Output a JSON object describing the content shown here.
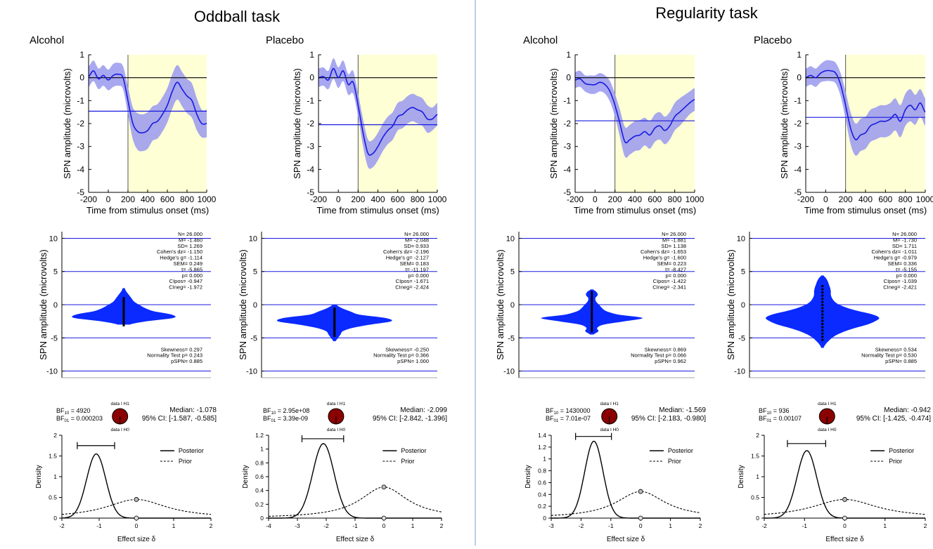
{
  "colors": {
    "erp_line": "#1a1ae0",
    "erp_band": "#9999ee",
    "window": "#ffffd6",
    "violin": "#0a2aff",
    "divider": "#7a9cc8",
    "bf_circle": "#8b0000"
  },
  "common": {
    "erp_xlabel": "Time from stimulus onset (ms)",
    "erp_ylabel": "SPN amplitude (microvolts)",
    "violin_ylabel": "SPN amplitude (microvolts)",
    "density_xlabel": "Effect size δ",
    "density_ylabel": "Density",
    "legend_posterior": "Posterior",
    "legend_prior": "Prior",
    "pie_top": "data I H1",
    "pie_bottom": "data I H0"
  },
  "tasks": [
    {
      "title": "Oddball task",
      "conditions": [
        {
          "label": "Alcohol",
          "stats": [
            {
              "key": "N=",
              "value": "26.000"
            },
            {
              "key": "M=",
              "value": "-1.460"
            },
            {
              "key": "SD=",
              "value": "1.269"
            },
            {
              "key": "Cohen's dz=",
              "value": "-1.150"
            },
            {
              "key": "Hedge's g=",
              "value": "-1.114"
            },
            {
              "key": "SEM=",
              "value": "0.249"
            },
            {
              "key": "t=",
              "value": "-5.865"
            },
            {
              "key": "p=",
              "value": "0.000"
            },
            {
              "key": "CIpos=",
              "value": "-0.947"
            },
            {
              "key": "CIneg=",
              "value": "-1.972"
            }
          ],
          "stats_low": [
            {
              "key": "Skewness=",
              "value": "0.297"
            },
            {
              "key": "Normality Test p=",
              "value": "0.243"
            },
            {
              "key": "pSPN=",
              "value": "0.885"
            }
          ],
          "bf10": "4920",
          "bf01": "0.000203",
          "median": "Median: -1.078",
          "ci": "95% CI: [-1.587, -0.585]"
        },
        {
          "label": "Placebo",
          "stats": [
            {
              "key": "N=",
              "value": "26.000"
            },
            {
              "key": "M=",
              "value": "-2.048"
            },
            {
              "key": "SD=",
              "value": "0.933"
            },
            {
              "key": "Cohen's dz=",
              "value": "-2.196"
            },
            {
              "key": "Hedge's g=",
              "value": "-2.127"
            },
            {
              "key": "SEM=",
              "value": "0.183"
            },
            {
              "key": "t=",
              "value": "-11.197"
            },
            {
              "key": "p=",
              "value": "0.000"
            },
            {
              "key": "CIpos=",
              "value": "-1.671"
            },
            {
              "key": "CIneg=",
              "value": "-2.424"
            }
          ],
          "stats_low": [
            {
              "key": "Skewness=",
              "value": "-0.250"
            },
            {
              "key": "Normality Test p=",
              "value": "0.366"
            },
            {
              "key": "pSPN=",
              "value": "1.000"
            }
          ],
          "bf10": "2.95e+08",
          "bf01": "3.39e-09",
          "median": "Median: -2.099",
          "ci": "95% CI: [-2.842, -1.396]"
        }
      ]
    },
    {
      "title": "Regularity task",
      "conditions": [
        {
          "label": "Alcohol",
          "stats": [
            {
              "key": "N=",
              "value": "26.000"
            },
            {
              "key": "M=",
              "value": "-1.881"
            },
            {
              "key": "SD=",
              "value": "1.138"
            },
            {
              "key": "Cohen's dz=",
              "value": "-1.653"
            },
            {
              "key": "Hedge's g=",
              "value": "-1.600"
            },
            {
              "key": "SEM=",
              "value": "0.223"
            },
            {
              "key": "t=",
              "value": "-8.427"
            },
            {
              "key": "p=",
              "value": "0.000"
            },
            {
              "key": "CIpos=",
              "value": "-1.422"
            },
            {
              "key": "CIneg=",
              "value": "-2.341"
            }
          ],
          "stats_low": [
            {
              "key": "Skewness=",
              "value": "0.869"
            },
            {
              "key": "Normality Test p=",
              "value": "0.066"
            },
            {
              "key": "pSPN=",
              "value": "0.962"
            }
          ],
          "bf10": "1430000",
          "bf01": "7.01e-07",
          "median": "Median: -1.569",
          "ci": "95% CI: [-2.183, -0.980]"
        },
        {
          "label": "Placebo",
          "stats": [
            {
              "key": "N=",
              "value": "26.000"
            },
            {
              "key": "M=",
              "value": "-1.730"
            },
            {
              "key": "SD=",
              "value": "1.711"
            },
            {
              "key": "Cohen's dz=",
              "value": "-1.011"
            },
            {
              "key": "Hedge's g=",
              "value": "-0.979"
            },
            {
              "key": "SEM=",
              "value": "0.336"
            },
            {
              "key": "t=",
              "value": "-5.155"
            },
            {
              "key": "p=",
              "value": "0.000"
            },
            {
              "key": "CIpos=",
              "value": "-1.039"
            },
            {
              "key": "CIneg=",
              "value": "-2.421"
            }
          ],
          "stats_low": [
            {
              "key": "Skewness=",
              "value": "0.534"
            },
            {
              "key": "Normality Test p=",
              "value": "0.530"
            },
            {
              "key": "pSPN=",
              "value": "0.885"
            }
          ],
          "bf10": "936",
          "bf01": "0.00107",
          "median": "Median: -0.942",
          "ci": "95% CI: [-1.425, -0.474]"
        }
      ]
    }
  ],
  "chart_data": [
    {
      "type": "line",
      "panel": "Oddball task / Alcohol / ERP",
      "xlabel": "Time from stimulus onset (ms)",
      "ylabel": "SPN amplitude (microvolts)",
      "xlim": [
        -200,
        1000
      ],
      "ylim": [
        -5,
        1
      ],
      "xticks": [
        -200,
        0,
        200,
        400,
        600,
        800,
        1000
      ],
      "yticks": [
        -5,
        -4,
        -3,
        -2,
        -1,
        0,
        1
      ],
      "analysis_window": [
        200,
        1000
      ],
      "mean_line": -1.46,
      "x": [
        -200,
        -150,
        -100,
        -50,
        0,
        50,
        100,
        150,
        200,
        250,
        300,
        350,
        400,
        450,
        500,
        550,
        600,
        650,
        700,
        750,
        800,
        850,
        900,
        950,
        1000
      ],
      "y": [
        0.05,
        0.3,
        -0.05,
        0.1,
        -0.1,
        0.1,
        0.15,
        0.0,
        -1.0,
        -2.0,
        -2.35,
        -2.4,
        -2.3,
        -2.0,
        -1.9,
        -1.6,
        -1.2,
        -0.6,
        -0.2,
        -0.5,
        -0.8,
        -1.0,
        -1.6,
        -2.0,
        -2.0
      ],
      "band": [
        0.45,
        0.45,
        0.45,
        0.45,
        0.45,
        0.5,
        0.5,
        0.5,
        0.6,
        0.7,
        0.8,
        0.8,
        0.8,
        0.75,
        0.75,
        0.75,
        0.75,
        0.75,
        0.75,
        0.75,
        0.75,
        0.75,
        0.7,
        0.6,
        0.6
      ]
    },
    {
      "type": "line",
      "panel": "Oddball task / Placebo / ERP",
      "xlabel": "Time from stimulus onset (ms)",
      "ylabel": "SPN amplitude (microvolts)",
      "xlim": [
        -200,
        1000
      ],
      "ylim": [
        -5,
        1
      ],
      "xticks": [
        -200,
        0,
        200,
        400,
        600,
        800,
        1000
      ],
      "yticks": [
        -5,
        -4,
        -3,
        -2,
        -1,
        0,
        1
      ],
      "analysis_window": [
        200,
        1000
      ],
      "mean_line": -2.05,
      "x": [
        -200,
        -150,
        -100,
        -50,
        0,
        50,
        100,
        150,
        200,
        250,
        300,
        350,
        400,
        450,
        500,
        550,
        600,
        650,
        700,
        750,
        800,
        850,
        900,
        950,
        1000
      ],
      "y": [
        0.0,
        0.05,
        -0.1,
        0.4,
        0.0,
        0.3,
        -0.3,
        -0.2,
        -1.2,
        -2.4,
        -3.3,
        -3.3,
        -3.0,
        -2.6,
        -2.3,
        -2.1,
        -1.7,
        -1.6,
        -1.4,
        -1.3,
        -1.4,
        -1.5,
        -1.8,
        -1.8,
        -1.6
      ],
      "band": [
        0.4,
        0.4,
        0.4,
        0.45,
        0.45,
        0.45,
        0.45,
        0.5,
        0.5,
        0.6,
        0.6,
        0.6,
        0.6,
        0.6,
        0.6,
        0.6,
        0.6,
        0.6,
        0.6,
        0.6,
        0.6,
        0.6,
        0.6,
        0.5,
        0.5
      ]
    },
    {
      "type": "line",
      "panel": "Regularity task / Alcohol / ERP",
      "xlabel": "Time from stimulus onset (ms)",
      "ylabel": "SPN amplitude (microvolts)",
      "xlim": [
        -200,
        1000
      ],
      "ylim": [
        -5,
        1
      ],
      "xticks": [
        -200,
        0,
        200,
        400,
        600,
        800,
        1000
      ],
      "yticks": [
        -5,
        -4,
        -3,
        -2,
        -1,
        0,
        1
      ],
      "analysis_window": [
        200,
        1000
      ],
      "mean_line": -1.88,
      "x": [
        -200,
        -150,
        -100,
        -50,
        0,
        50,
        100,
        150,
        200,
        250,
        300,
        350,
        400,
        450,
        500,
        550,
        600,
        650,
        700,
        750,
        800,
        850,
        900,
        950,
        1000
      ],
      "y": [
        -0.1,
        -0.05,
        -0.25,
        -0.3,
        -0.3,
        -0.2,
        -0.3,
        -0.6,
        -1.2,
        -2.0,
        -2.8,
        -2.7,
        -2.55,
        -2.5,
        -2.35,
        -2.5,
        -2.2,
        -2.1,
        -2.3,
        -2.1,
        -1.7,
        -1.5,
        -1.3,
        -1.1,
        -0.95
      ],
      "band": [
        0.35,
        0.35,
        0.35,
        0.4,
        0.4,
        0.4,
        0.4,
        0.45,
        0.5,
        0.6,
        0.65,
        0.65,
        0.65,
        0.65,
        0.6,
        0.6,
        0.6,
        0.6,
        0.6,
        0.6,
        0.6,
        0.6,
        0.55,
        0.5,
        0.5
      ]
    },
    {
      "type": "line",
      "panel": "Regularity task / Placebo / ERP",
      "xlabel": "Time from stimulus onset (ms)",
      "ylabel": "SPN amplitude (microvolts)",
      "xlim": [
        -200,
        1000
      ],
      "ylim": [
        -5,
        1
      ],
      "xticks": [
        -200,
        0,
        200,
        400,
        600,
        800,
        1000
      ],
      "yticks": [
        -5,
        -4,
        -3,
        -2,
        -1,
        0,
        1
      ],
      "analysis_window": [
        200,
        1000
      ],
      "mean_line": -1.73,
      "x": [
        -200,
        -150,
        -100,
        -50,
        0,
        50,
        100,
        150,
        200,
        250,
        300,
        350,
        400,
        450,
        500,
        550,
        600,
        650,
        700,
        750,
        800,
        850,
        900,
        950,
        1000
      ],
      "y": [
        0.0,
        0.1,
        0.0,
        0.2,
        0.3,
        0.3,
        0.2,
        -0.3,
        -1.2,
        -2.2,
        -2.7,
        -2.5,
        -2.4,
        -2.1,
        -2.0,
        -1.9,
        -1.9,
        -1.8,
        -1.6,
        -1.9,
        -1.4,
        -1.2,
        -1.4,
        -1.1,
        -1.5
      ],
      "band": [
        0.4,
        0.4,
        0.4,
        0.4,
        0.45,
        0.45,
        0.45,
        0.5,
        0.6,
        0.7,
        0.7,
        0.7,
        0.7,
        0.7,
        0.7,
        0.7,
        0.7,
        0.7,
        0.7,
        0.7,
        0.7,
        0.7,
        0.65,
        0.6,
        0.6
      ]
    },
    {
      "type": "violin",
      "panel": "Oddball task / Alcohol / violin",
      "ylabel": "SPN amplitude (microvolts)",
      "ylim": [
        -11,
        11
      ],
      "yticks": [
        -10,
        -5,
        0,
        5,
        10
      ],
      "y": [
        -3.0,
        -2.5,
        -2.0,
        -1.5,
        -1.0,
        -0.5,
        0.0,
        0.5,
        1.0,
        1.5,
        2.0,
        2.5
      ],
      "width": [
        0.12,
        0.45,
        0.98,
        0.95,
        0.6,
        0.42,
        0.3,
        0.2,
        0.15,
        0.1,
        0.05,
        0.02
      ],
      "points_range": [
        -3.1,
        1.0
      ]
    },
    {
      "type": "violin",
      "panel": "Oddball task / Placebo / violin",
      "ylabel": "SPN amplitude (microvolts)",
      "ylim": [
        -11,
        11
      ],
      "yticks": [
        -10,
        -5,
        0,
        5,
        10
      ],
      "y": [
        -5.5,
        -5.0,
        -4.5,
        -4.0,
        -3.5,
        -3.0,
        -2.5,
        -2.0,
        -1.5,
        -1.0,
        -0.5,
        0.0
      ],
      "width": [
        0.02,
        0.06,
        0.1,
        0.14,
        0.3,
        0.6,
        0.95,
        0.85,
        0.42,
        0.26,
        0.12,
        0.03
      ],
      "points_range": [
        -4.7,
        -0.6
      ]
    },
    {
      "type": "violin",
      "panel": "Regularity task / Alcohol / violin",
      "ylabel": "SPN amplitude (microvolts)",
      "ylim": [
        -11,
        11
      ],
      "yticks": [
        -10,
        -5,
        0,
        5,
        10
      ],
      "y": [
        -4.5,
        -4.0,
        -3.5,
        -3.0,
        -2.5,
        -2.0,
        -1.5,
        -1.0,
        -0.5,
        0.0,
        0.5,
        1.0,
        1.5,
        2.0,
        2.3
      ],
      "width": [
        0.03,
        0.11,
        0.09,
        0.2,
        0.55,
        0.85,
        0.45,
        0.25,
        0.17,
        0.12,
        0.07,
        0.06,
        0.1,
        0.07,
        0.02
      ],
      "points_range": [
        -4.0,
        1.9
      ]
    },
    {
      "type": "violin",
      "panel": "Regularity task / Placebo / violin",
      "ylabel": "SPN amplitude (microvolts)",
      "ylim": [
        -11,
        11
      ],
      "yticks": [
        -10,
        -5,
        0,
        5,
        10
      ],
      "y": [
        -6.5,
        -6.0,
        -5.5,
        -5.0,
        -4.5,
        -4.0,
        -3.5,
        -3.0,
        -2.5,
        -2.0,
        -1.5,
        -1.0,
        -0.5,
        0.0,
        0.5,
        1.0,
        1.5,
        2.0,
        2.5,
        3.0,
        3.5,
        4.0,
        4.4
      ],
      "width": [
        0.02,
        0.05,
        0.1,
        0.16,
        0.25,
        0.38,
        0.55,
        0.75,
        0.88,
        0.95,
        0.85,
        0.62,
        0.42,
        0.28,
        0.2,
        0.16,
        0.14,
        0.14,
        0.13,
        0.11,
        0.09,
        0.06,
        0.02
      ],
      "points_range": [
        -5.3,
        2.8
      ]
    },
    {
      "type": "line",
      "panel": "Oddball task / Alcohol / density",
      "xlabel": "Effect size δ",
      "ylabel": "Density",
      "xlim": [
        -2,
        2
      ],
      "ylim": [
        0,
        2
      ],
      "xticks": [
        -2,
        -1,
        0,
        1,
        2
      ],
      "yticks": [
        0,
        0.5,
        1,
        1.5,
        2
      ],
      "posterior_mode": -1.078,
      "posterior_peak": 1.55,
      "ci": [
        -1.587,
        -0.585
      ],
      "ci_y": 1.75,
      "prior_at_zero": 0.45,
      "series": [
        {
          "name": "Posterior"
        },
        {
          "name": "Prior"
        }
      ]
    },
    {
      "type": "line",
      "panel": "Oddball task / Placebo / density",
      "xlabel": "Effect size δ",
      "ylabel": "Density",
      "xlim": [
        -4,
        2
      ],
      "ylim": [
        0,
        1.2
      ],
      "xticks": [
        -4,
        -3,
        -2,
        -1,
        0,
        1,
        2
      ],
      "yticks": [
        0,
        0.2,
        0.4,
        0.6,
        0.8,
        1,
        1.2
      ],
      "posterior_mode": -2.099,
      "posterior_peak": 1.08,
      "ci": [
        -2.842,
        -1.396
      ],
      "ci_y": 1.15,
      "prior_at_zero": 0.45,
      "series": [
        {
          "name": "Posterior"
        },
        {
          "name": "Prior"
        }
      ]
    },
    {
      "type": "line",
      "panel": "Regularity task / Alcohol / density",
      "xlabel": "Effect size δ",
      "ylabel": "Density",
      "xlim": [
        -3,
        2
      ],
      "ylim": [
        0,
        1.4
      ],
      "xticks": [
        -3,
        -2,
        -1,
        0,
        1,
        2
      ],
      "yticks": [
        0,
        0.2,
        0.4,
        0.6,
        0.8,
        1,
        1.2,
        1.4
      ],
      "posterior_mode": -1.569,
      "posterior_peak": 1.3,
      "ci": [
        -2.183,
        -0.98
      ],
      "ci_y": 1.38,
      "prior_at_zero": 0.45,
      "series": [
        {
          "name": "Posterior"
        },
        {
          "name": "Prior"
        }
      ]
    },
    {
      "type": "line",
      "panel": "Regularity task / Placebo / density",
      "xlabel": "Effect size δ",
      "ylabel": "Density",
      "xlim": [
        -2,
        2
      ],
      "ylim": [
        0,
        2
      ],
      "xticks": [
        -2,
        -1,
        0,
        1,
        2
      ],
      "yticks": [
        0,
        0.5,
        1,
        1.5,
        2
      ],
      "posterior_mode": -0.942,
      "posterior_peak": 1.63,
      "ci": [
        -1.425,
        -0.474
      ],
      "ci_y": 1.8,
      "prior_at_zero": 0.45,
      "series": [
        {
          "name": "Posterior"
        },
        {
          "name": "Prior"
        }
      ]
    }
  ]
}
